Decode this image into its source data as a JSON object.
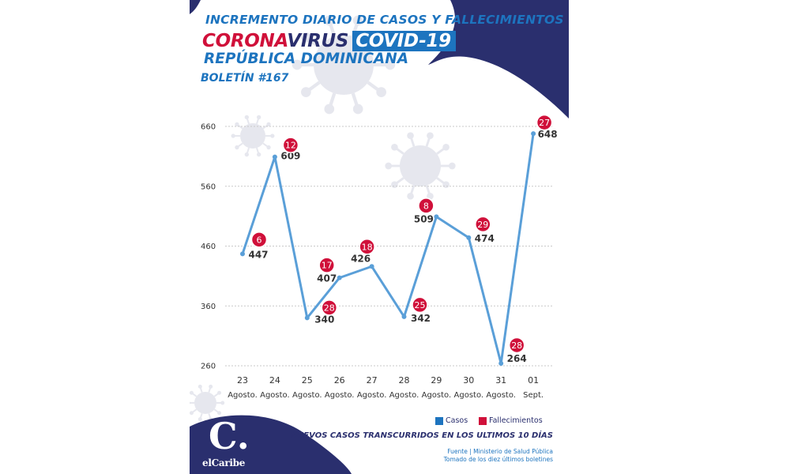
{
  "header": {
    "title_line1": "INCREMENTO DIARIO DE CASOS Y FALLECIMIENTOS",
    "title_corona": "CORONA",
    "title_virus": "VIRUS",
    "title_covid": "COVID-19",
    "title_country": "REPÚBLICA DOMINICANA",
    "bulletin": "BOLETÍN #167"
  },
  "legend": {
    "cases_label": "Casos",
    "deaths_label": "Fallecimientos"
  },
  "footer": {
    "caption": "NUEVOS CASOS TRANSCURRIDOS EN LOS ULTIMOS 10 DÍAS",
    "source_line1": "Fuente | Ministerio de Salud Pública",
    "source_line2": "Tomado de  los diez últimos boletines",
    "logo_letter": "C.",
    "logo_word": "elCaribe"
  },
  "colors": {
    "line": "#5a9fd8",
    "deaths_badge": "#d0103a",
    "navy": "#2a2f6e",
    "blue": "#1d74bf",
    "grid": "#c9c9c9",
    "axis_text": "#333333",
    "virus_decoration": "#e6e7ee"
  },
  "chart_data": {
    "type": "line",
    "title": "INCREMENTO DIARIO DE CASOS Y FALLECIMIENTOS",
    "xlabel": "",
    "ylabel": "",
    "categories_day": [
      "23",
      "24",
      "25",
      "26",
      "27",
      "28",
      "29",
      "30",
      "31",
      "01"
    ],
    "categories_month": [
      "Agosto.",
      "Agosto.",
      "Agosto.",
      "Agosto.",
      "Agosto.",
      "Agosto.",
      "Agosto.",
      "Agosto.",
      "Agosto.",
      "Sept."
    ],
    "y_ticks": [
      260,
      360,
      460,
      560,
      660
    ],
    "ylim": [
      260,
      660
    ],
    "grid": "horizontal dashed",
    "legend_position": "bottom-right",
    "series": [
      {
        "name": "Casos",
        "values": [
          447,
          609,
          340,
          407,
          426,
          342,
          509,
          474,
          264,
          648
        ]
      },
      {
        "name": "Fallecimientos",
        "values": [
          6,
          12,
          28,
          17,
          18,
          25,
          8,
          29,
          28,
          27
        ]
      }
    ]
  }
}
